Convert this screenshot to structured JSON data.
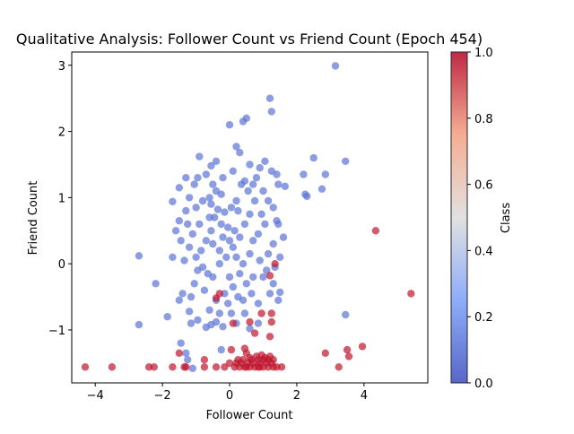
{
  "chart_data": {
    "type": "scatter",
    "title": "Qualitative Analysis: Follower Count vs Friend Count (Epoch 454)",
    "xlabel": "Follower Count",
    "ylabel": "Friend Count",
    "xlim": [
      -4.7,
      5.9
    ],
    "ylim": [
      -1.8,
      3.2
    ],
    "xticks": [
      -4,
      -2,
      0,
      2,
      4
    ],
    "yticks": [
      -1,
      0,
      1,
      2,
      3
    ],
    "x_tick_labels": [
      "−4",
      "−2",
      "0",
      "2",
      "4"
    ],
    "y_tick_labels": [
      "−1",
      "0",
      "1",
      "2",
      "3"
    ],
    "grid": false,
    "colormap": "coolwarm",
    "colorbar": {
      "label": "Class",
      "range": [
        0.0,
        1.0
      ],
      "ticks": [
        0.0,
        0.2,
        0.4,
        0.6,
        0.8,
        1.0
      ],
      "tick_labels": [
        "0.0",
        "0.2",
        "0.4",
        "0.6",
        "0.8",
        "1.0"
      ]
    },
    "colors": {
      "class_0": "#5b73d6",
      "class_1": "#c1152e"
    },
    "series": [
      {
        "class": 0,
        "points": [
          [
            3.15,
            2.99
          ],
          [
            1.2,
            2.5
          ],
          [
            1.25,
            2.3
          ],
          [
            0.5,
            2.2
          ],
          [
            0.4,
            2.15
          ],
          [
            0.0,
            2.1
          ],
          [
            2.5,
            1.6
          ],
          [
            3.45,
            1.55
          ],
          [
            2.85,
            1.35
          ],
          [
            2.2,
            1.35
          ],
          [
            2.25,
            1.05
          ],
          [
            2.3,
            1.02
          ],
          [
            2.75,
            1.13
          ],
          [
            1.65,
            1.17
          ],
          [
            1.4,
            1.35
          ],
          [
            0.2,
            1.77
          ],
          [
            0.3,
            1.68
          ],
          [
            -0.9,
            1.62
          ],
          [
            -0.55,
            1.48
          ],
          [
            0.6,
            1.5
          ],
          [
            -1.3,
            1.3
          ],
          [
            -1.05,
            1.2
          ],
          [
            -1.5,
            1.15
          ],
          [
            -1.7,
            0.94
          ],
          [
            -1.3,
            0.8
          ],
          [
            -1.5,
            0.65
          ],
          [
            -2.7,
            0.12
          ],
          [
            -2.2,
            -0.3
          ],
          [
            -2.7,
            -0.92
          ],
          [
            -1.85,
            -0.8
          ],
          [
            3.45,
            -0.77
          ],
          [
            1.5,
            -0.43
          ],
          [
            1.45,
            -0.55
          ],
          [
            1.2,
            -0.45
          ],
          [
            0.4,
            -0.55
          ],
          [
            -0.3,
            -0.75
          ],
          [
            -0.6,
            -0.7
          ],
          [
            -0.95,
            -0.85
          ],
          [
            -0.55,
            -0.92
          ],
          [
            -0.7,
            -0.96
          ],
          [
            -1.15,
            -0.9
          ],
          [
            -1.2,
            -0.72
          ],
          [
            -1.5,
            -0.55
          ],
          [
            -1.45,
            -1.2
          ],
          [
            -1.3,
            -1.35
          ],
          [
            -1.25,
            -1.45
          ],
          [
            -1.1,
            -1.58
          ],
          [
            -0.25,
            -1.3
          ],
          [
            0.05,
            -0.75
          ],
          [
            0.2,
            -0.9
          ],
          [
            0.85,
            -0.9
          ],
          [
            0.6,
            -0.98
          ],
          [
            -0.2,
            -0.95
          ],
          [
            -0.4,
            -0.88
          ],
          [
            0.9,
            1.45
          ],
          [
            0.8,
            1.3
          ],
          [
            1.25,
            1.4
          ],
          [
            1.45,
            1.2
          ],
          [
            1.6,
            0.4
          ],
          [
            1.45,
            0.6
          ],
          [
            1.3,
            0.3
          ],
          [
            1.15,
            0.15
          ],
          [
            0.9,
            0.05
          ],
          [
            1.1,
            -0.1
          ],
          [
            0.7,
            -0.2
          ],
          [
            0.5,
            -0.3
          ],
          [
            1.3,
            -0.3
          ],
          [
            1.0,
            -0.2
          ],
          [
            0.85,
            -0.6
          ],
          [
            1.05,
            0.6
          ],
          [
            0.95,
            0.75
          ],
          [
            0.75,
            0.95
          ],
          [
            0.55,
            1.1
          ],
          [
            0.45,
            1.25
          ],
          [
            0.1,
            1.4
          ],
          [
            -0.2,
            1.3
          ],
          [
            -0.4,
            1.1
          ],
          [
            -0.6,
            1.0
          ],
          [
            -0.8,
            0.95
          ],
          [
            -1.0,
            0.85
          ],
          [
            -0.9,
            0.6
          ],
          [
            -1.1,
            0.45
          ],
          [
            -1.2,
            0.25
          ],
          [
            -1.0,
            0.1
          ],
          [
            -0.8,
            -0.05
          ],
          [
            -1.05,
            -0.3
          ],
          [
            -0.75,
            -0.4
          ],
          [
            -0.5,
            -0.2
          ],
          [
            -0.3,
            0.0
          ],
          [
            -0.1,
            0.1
          ],
          [
            0.1,
            0.25
          ],
          [
            0.3,
            0.4
          ],
          [
            0.45,
            0.6
          ],
          [
            0.25,
            0.8
          ],
          [
            0.05,
            0.85
          ],
          [
            -0.15,
            0.78
          ],
          [
            -0.35,
            0.82
          ],
          [
            -0.45,
            0.7
          ],
          [
            -0.25,
            0.6
          ],
          [
            -0.05,
            0.55
          ],
          [
            0.15,
            0.5
          ],
          [
            -0.55,
            0.5
          ],
          [
            -0.7,
            0.35
          ],
          [
            -0.5,
            0.3
          ],
          [
            -0.3,
            0.2
          ],
          [
            0.0,
            0.35
          ],
          [
            0.2,
            0.1
          ],
          [
            0.4,
            0.0
          ],
          [
            0.6,
            0.15
          ],
          [
            0.7,
            0.35
          ],
          [
            0.85,
            0.45
          ],
          [
            0.65,
            -0.45
          ],
          [
            0.3,
            -0.15
          ],
          [
            0.1,
            -0.35
          ],
          [
            -0.15,
            -0.45
          ],
          [
            -0.4,
            -0.55
          ],
          [
            -0.65,
            -0.15
          ],
          [
            -0.85,
            0.2
          ],
          [
            -0.95,
            -0.1
          ],
          [
            -1.35,
            0.05
          ],
          [
            -1.4,
            -0.45
          ],
          [
            -1.15,
            -0.5
          ],
          [
            -0.55,
            0.9
          ],
          [
            -0.25,
            1.05
          ],
          [
            0.35,
            1.2
          ],
          [
            0.7,
            1.2
          ],
          [
            1.0,
            1.1
          ],
          [
            1.15,
            0.95
          ],
          [
            1.3,
            0.85
          ],
          [
            1.4,
            0.65
          ],
          [
            1.5,
            0.1
          ],
          [
            1.35,
            -0.05
          ],
          [
            -0.5,
            1.2
          ],
          [
            -0.7,
            1.35
          ],
          [
            -0.95,
            1.3
          ],
          [
            0.2,
            0.95
          ],
          [
            0.6,
            0.75
          ],
          [
            -0.6,
            0.7
          ],
          [
            -0.2,
            0.4
          ],
          [
            0.0,
            -0.2
          ],
          [
            -0.05,
            -0.6
          ],
          [
            0.45,
            -0.75
          ],
          [
            0.25,
            -0.5
          ],
          [
            -1.6,
            0.5
          ],
          [
            -1.45,
            0.35
          ],
          [
            -1.25,
            0.6
          ],
          [
            -1.7,
            0.1
          ],
          [
            -1.2,
            1.0
          ],
          [
            -0.4,
            1.55
          ],
          [
            1.05,
            1.55
          ]
        ]
      },
      {
        "class": 1,
        "points": [
          [
            4.35,
            0.5
          ],
          [
            5.4,
            -0.45
          ],
          [
            3.95,
            -1.25
          ],
          [
            3.5,
            -1.3
          ],
          [
            2.85,
            -1.35
          ],
          [
            3.55,
            -1.4
          ],
          [
            3.25,
            -1.56
          ],
          [
            -4.3,
            -1.56
          ],
          [
            -3.5,
            -1.56
          ],
          [
            -2.4,
            -1.56
          ],
          [
            -1.7,
            -1.56
          ],
          [
            -1.3,
            -1.56
          ],
          [
            -2.25,
            -1.56
          ],
          [
            -0.4,
            -1.56
          ],
          [
            -0.75,
            -1.56
          ],
          [
            -0.75,
            -1.45
          ],
          [
            -1.5,
            -1.35
          ],
          [
            -1.35,
            -1.56
          ],
          [
            1.55,
            -1.56
          ],
          [
            1.25,
            -0.75
          ],
          [
            1.25,
            -0.88
          ],
          [
            1.35,
            0.0
          ],
          [
            1.2,
            -0.18
          ],
          [
            0.95,
            -0.75
          ],
          [
            0.6,
            -0.88
          ],
          [
            0.1,
            -0.9
          ],
          [
            -0.3,
            -0.45
          ],
          [
            -0.4,
            -0.52
          ],
          [
            0.75,
            -1.05
          ],
          [
            1.2,
            -1.1
          ],
          [
            0.05,
            -1.3
          ],
          [
            0.45,
            -1.28
          ],
          [
            0.5,
            -1.35
          ],
          [
            0.6,
            -1.42
          ],
          [
            0.8,
            -1.4
          ],
          [
            0.95,
            -1.38
          ],
          [
            1.05,
            -1.42
          ],
          [
            1.2,
            -1.4
          ],
          [
            0.2,
            -1.5
          ],
          [
            0.35,
            -1.5
          ],
          [
            0.55,
            -1.5
          ],
          [
            0.7,
            -1.5
          ],
          [
            0.9,
            -1.5
          ],
          [
            1.1,
            -1.5
          ],
          [
            1.25,
            -1.5
          ],
          [
            0.15,
            -1.56
          ],
          [
            0.3,
            -1.56
          ],
          [
            0.45,
            -1.56
          ],
          [
            0.6,
            -1.56
          ],
          [
            0.75,
            -1.56
          ],
          [
            0.9,
            -1.56
          ],
          [
            1.0,
            -1.56
          ],
          [
            1.15,
            -1.56
          ],
          [
            1.3,
            -1.56
          ],
          [
            1.4,
            -1.56
          ],
          [
            0.0,
            -1.5
          ],
          [
            -0.15,
            -1.56
          ],
          [
            0.25,
            -1.45
          ],
          [
            0.4,
            -1.45
          ],
          [
            0.65,
            -1.45
          ],
          [
            0.85,
            -1.45
          ],
          [
            1.0,
            -1.45
          ],
          [
            1.15,
            -1.45
          ],
          [
            1.3,
            -1.45
          ],
          [
            0.5,
            -1.56
          ],
          [
            0.85,
            -1.56
          ]
        ]
      }
    ]
  }
}
